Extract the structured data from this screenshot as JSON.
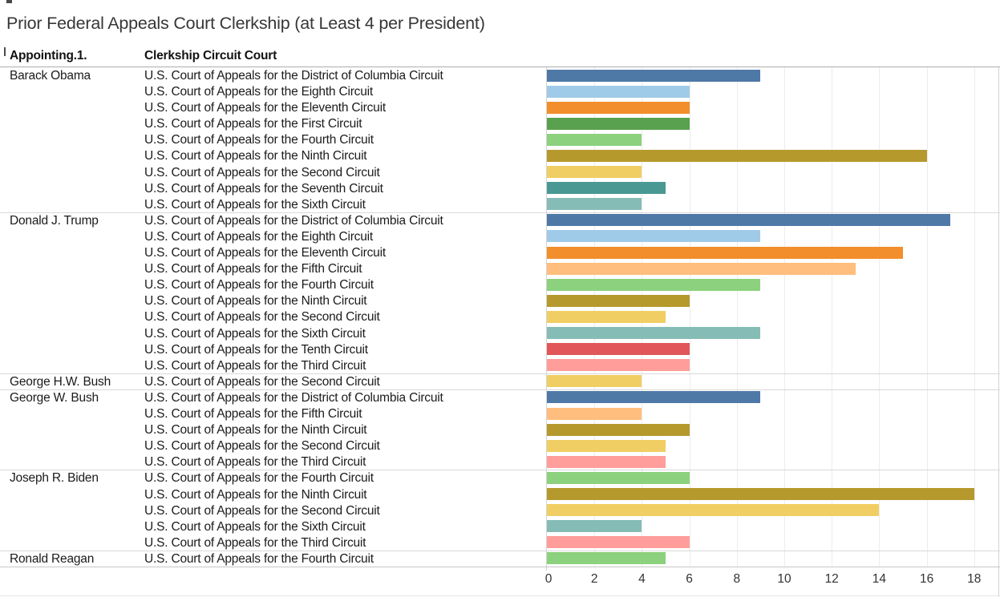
{
  "columns": {
    "president": "Appointing.1.",
    "court": "Clerkship Circuit Court"
  },
  "chart_data": {
    "type": "bar",
    "orientation": "horizontal",
    "title": "Prior Federal Appeals Court Clerkship (at Least 4 per President)",
    "xlabel": "",
    "ylabel": "",
    "x_axis": {
      "ticks": [
        0,
        2,
        4,
        6,
        8,
        10,
        12,
        14,
        16,
        18
      ],
      "min": 0,
      "max": 19,
      "grid": true
    },
    "groups": [
      {
        "president": "Barack Obama",
        "rows": [
          {
            "court": "U.S. Court of Appeals for the District of Columbia Circuit",
            "value": 9
          },
          {
            "court": "U.S. Court of Appeals for the Eighth Circuit",
            "value": 6
          },
          {
            "court": "U.S. Court of Appeals for the Eleventh Circuit",
            "value": 6
          },
          {
            "court": "U.S. Court of Appeals for the First Circuit",
            "value": 6
          },
          {
            "court": "U.S. Court of Appeals for the Fourth Circuit",
            "value": 4
          },
          {
            "court": "U.S. Court of Appeals for the Ninth Circuit",
            "value": 16
          },
          {
            "court": "U.S. Court of Appeals for the Second Circuit",
            "value": 4
          },
          {
            "court": "U.S. Court of Appeals for the Seventh Circuit",
            "value": 5
          },
          {
            "court": "U.S. Court of Appeals for the Sixth Circuit",
            "value": 4
          }
        ]
      },
      {
        "president": "Donald J. Trump",
        "rows": [
          {
            "court": "U.S. Court of Appeals for the District of Columbia Circuit",
            "value": 17
          },
          {
            "court": "U.S. Court of Appeals for the Eighth Circuit",
            "value": 9
          },
          {
            "court": "U.S. Court of Appeals for the Eleventh Circuit",
            "value": 15
          },
          {
            "court": "U.S. Court of Appeals for the Fifth Circuit",
            "value": 13
          },
          {
            "court": "U.S. Court of Appeals for the Fourth Circuit",
            "value": 9
          },
          {
            "court": "U.S. Court of Appeals for the Ninth Circuit",
            "value": 6
          },
          {
            "court": "U.S. Court of Appeals for the Second Circuit",
            "value": 5
          },
          {
            "court": "U.S. Court of Appeals for the Sixth Circuit",
            "value": 9
          },
          {
            "court": "U.S. Court of Appeals for the Tenth Circuit",
            "value": 6
          },
          {
            "court": "U.S. Court of Appeals for the Third Circuit",
            "value": 6
          }
        ]
      },
      {
        "president": "George H.W. Bush",
        "rows": [
          {
            "court": "U.S. Court of Appeals for the Second Circuit",
            "value": 4
          }
        ]
      },
      {
        "president": "George W. Bush",
        "rows": [
          {
            "court": "U.S. Court of Appeals for the District of Columbia Circuit",
            "value": 9
          },
          {
            "court": "U.S. Court of Appeals for the Fifth Circuit",
            "value": 4
          },
          {
            "court": "U.S. Court of Appeals for the Ninth Circuit",
            "value": 6
          },
          {
            "court": "U.S. Court of Appeals for the Second Circuit",
            "value": 5
          },
          {
            "court": "U.S. Court of Appeals for the Third Circuit",
            "value": 5
          }
        ]
      },
      {
        "president": "Joseph R. Biden",
        "rows": [
          {
            "court": "U.S. Court of Appeals for the Fourth Circuit",
            "value": 6
          },
          {
            "court": "U.S. Court of Appeals for the Ninth Circuit",
            "value": 18
          },
          {
            "court": "U.S. Court of Appeals for the Second Circuit",
            "value": 14
          },
          {
            "court": "U.S. Court of Appeals for the Sixth Circuit",
            "value": 4
          },
          {
            "court": "U.S. Court of Appeals for the Third Circuit",
            "value": 6
          }
        ]
      },
      {
        "president": "Ronald Reagan",
        "rows": [
          {
            "court": "U.S. Court of Appeals for the Fourth Circuit",
            "value": 5
          }
        ]
      }
    ],
    "palette": {
      "U.S. Court of Appeals for the District of Columbia Circuit": "#4E79A7",
      "U.S. Court of Appeals for the Eighth Circuit": "#A0CBE8",
      "U.S. Court of Appeals for the Eleventh Circuit": "#F28E2B",
      "U.S. Court of Appeals for the Fifth Circuit": "#FFBE7D",
      "U.S. Court of Appeals for the First Circuit": "#59A14F",
      "U.S. Court of Appeals for the Fourth Circuit": "#8CD17D",
      "U.S. Court of Appeals for the Ninth Circuit": "#B6992D",
      "U.S. Court of Appeals for the Second Circuit": "#F1CE63",
      "U.S. Court of Appeals for the Seventh Circuit": "#499894",
      "U.S. Court of Appeals for the Sixth Circuit": "#86BCB6",
      "U.S. Court of Appeals for the Tenth Circuit": "#E15759",
      "U.S. Court of Appeals for the Third Circuit": "#FF9D9A"
    }
  }
}
